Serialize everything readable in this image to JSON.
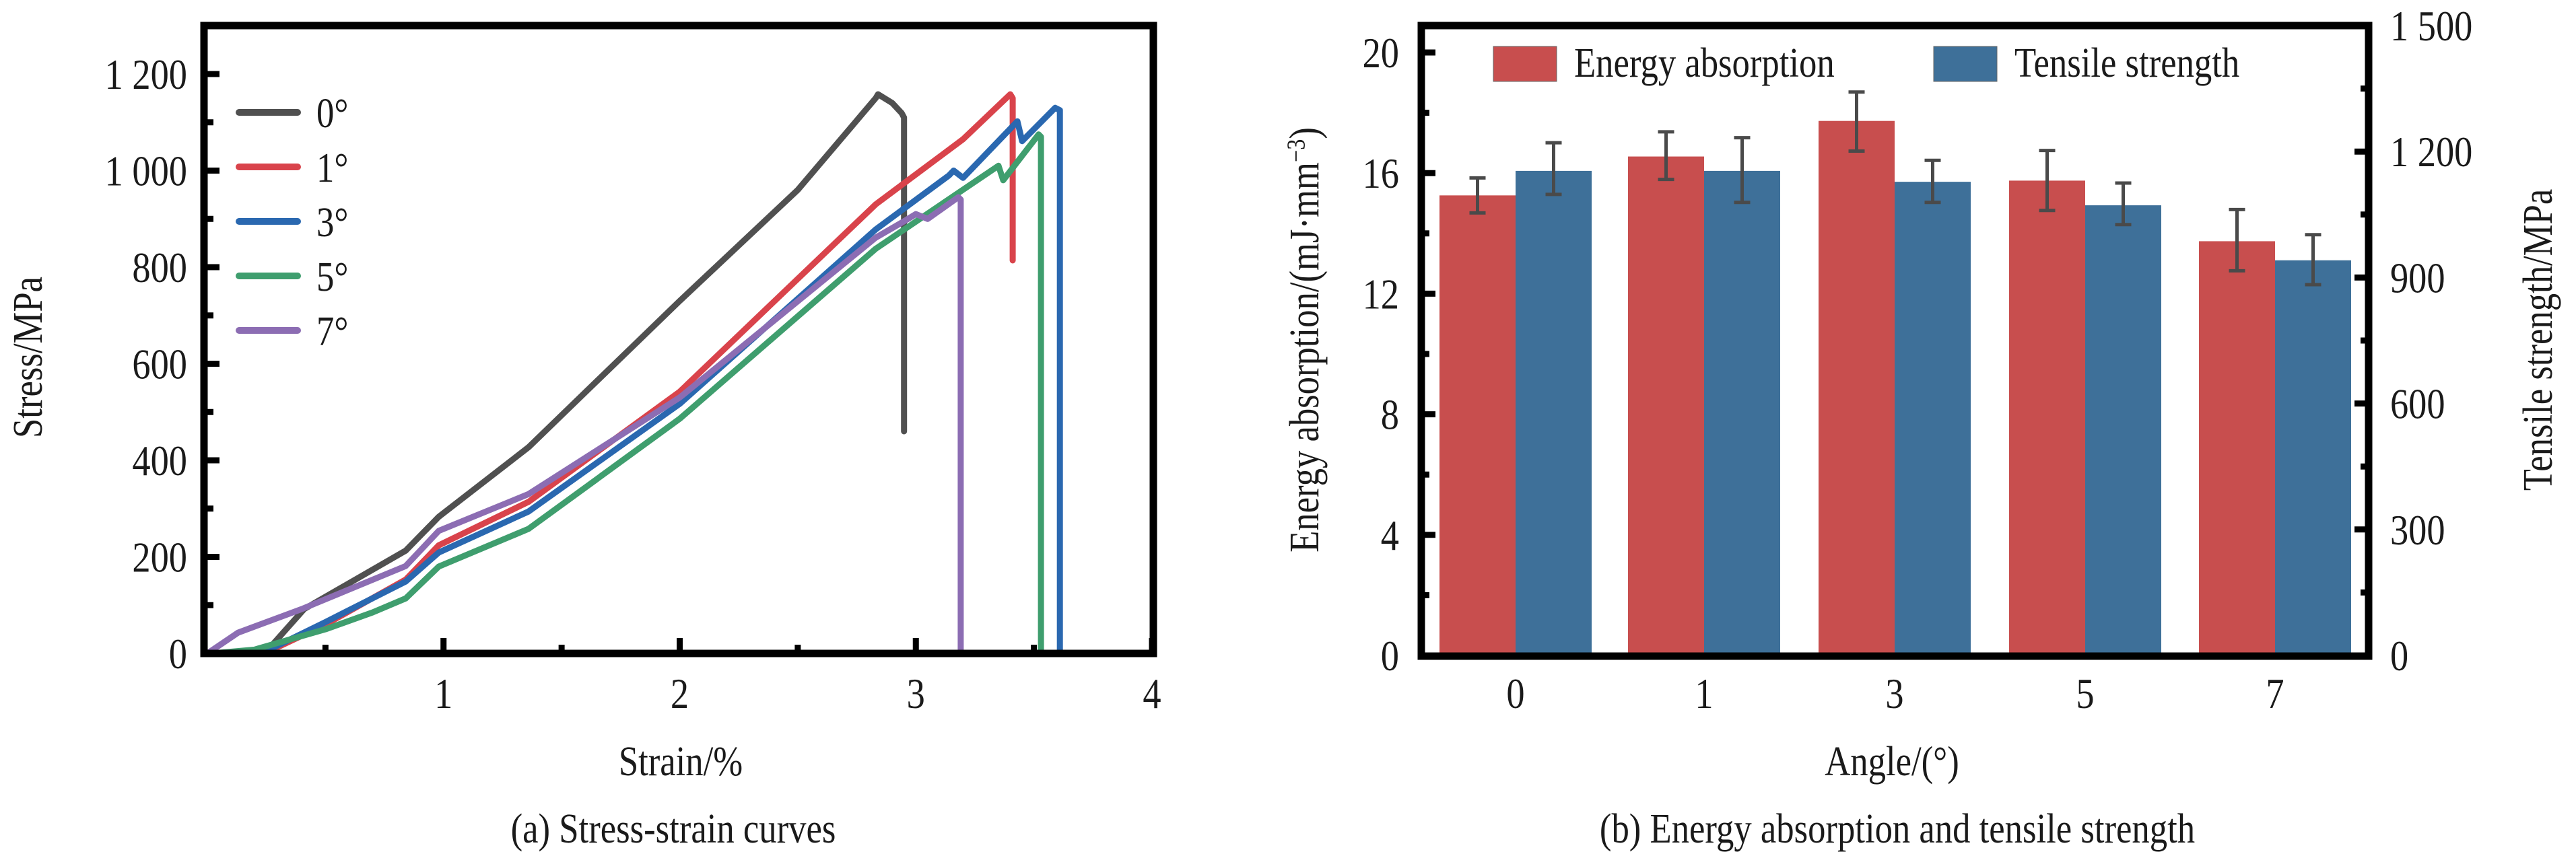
{
  "chart_data": [
    {
      "id": "a",
      "type": "line",
      "title": "",
      "caption": "(a) Stress-strain curves",
      "xlabel": "Strain/%",
      "ylabel": "Stress/MPa",
      "xlim": [
        0,
        4
      ],
      "ylim": [
        0,
        1305
      ],
      "xticks": [
        1,
        2,
        3,
        4
      ],
      "xtick_labels": [
        "1",
        "2",
        "3",
        "4"
      ],
      "x_minor_ticks": [
        0.5,
        1.5,
        2.5,
        3.5
      ],
      "yticks": [
        0,
        200,
        400,
        600,
        800,
        1000,
        1200
      ],
      "ytick_labels": [
        "0",
        "200",
        "400",
        "600",
        "800",
        "1 000",
        "1 200"
      ],
      "y_minor_ticks": [
        100,
        300,
        500,
        700,
        900,
        1100
      ],
      "grid": false,
      "legend_position": "top-left",
      "series": [
        {
          "name": "0°",
          "color": "#505050",
          "x": [
            0.02,
            0.25,
            0.41,
            0.84,
            0.98,
            1.36,
            2.0,
            2.5,
            2.83,
            2.84,
            2.9,
            2.94,
            2.95,
            2.95
          ],
          "y": [
            0,
            4,
            92,
            213,
            283,
            427,
            730,
            960,
            1150,
            1158,
            1140,
            1119,
            1110,
            460
          ]
        },
        {
          "name": "1°",
          "color": "#d9434b",
          "x": [
            0.02,
            0.25,
            0.5,
            0.84,
            0.98,
            1.36,
            2.0,
            2.83,
            3.2,
            3.4,
            3.41,
            3.41
          ],
          "y": [
            0,
            2,
            60,
            153,
            224,
            314,
            542,
            930,
            1065,
            1158,
            1150,
            814
          ]
        },
        {
          "name": "3°",
          "color": "#2a68b0",
          "x": [
            0.02,
            0.25,
            0.5,
            0.84,
            0.98,
            1.36,
            2.0,
            2.83,
            3.14,
            3.16,
            3.2,
            3.43,
            3.45,
            3.59,
            3.61,
            3.61
          ],
          "y": [
            0,
            5,
            65,
            149,
            209,
            294,
            517,
            878,
            990,
            1000,
            985,
            1102,
            1061,
            1130,
            1125,
            0
          ]
        },
        {
          "name": "5°",
          "color": "#3f9e6e",
          "x": [
            0.02,
            0.2,
            0.5,
            0.7,
            0.84,
            0.98,
            1.36,
            2.0,
            2.83,
            3.35,
            3.37,
            3.52,
            3.53,
            3.53
          ],
          "y": [
            0,
            8,
            50,
            85,
            114,
            180,
            258,
            486,
            838,
            1010,
            980,
            1075,
            1070,
            0
          ]
        },
        {
          "name": "7°",
          "color": "#8c6db3",
          "x": [
            0.0,
            0.13,
            0.4,
            0.84,
            0.98,
            1.36,
            2.0,
            2.83,
            2.95,
            3.0,
            3.05,
            3.18,
            3.19,
            3.19
          ],
          "y": [
            0,
            43,
            92,
            181,
            254,
            330,
            530,
            861,
            895,
            910,
            900,
            945,
            940,
            0
          ]
        }
      ]
    },
    {
      "id": "b",
      "type": "bar",
      "title": "",
      "caption": "(b) Energy absorption and tensile strength",
      "xlabel": "Angle/(°)",
      "ylabel": "Energy absorption/(mJ·mm",
      "ylabel_sup": "−3",
      "ylabel_close": ")",
      "y2label": "Tensile strength/MPa",
      "categories": [
        "0",
        "1",
        "3",
        "5",
        "7"
      ],
      "ylim": [
        0,
        20.9
      ],
      "y2lim": [
        0,
        1500
      ],
      "yticks": [
        0,
        4,
        8,
        12,
        16,
        20
      ],
      "ytick_labels": [
        "0",
        "4",
        "8",
        "12",
        "16",
        "20"
      ],
      "y_minor_ticks": [
        2,
        6,
        10,
        14,
        18
      ],
      "y2ticks": [
        0,
        300,
        600,
        900,
        1200,
        1500
      ],
      "y2tick_labels": [
        "0",
        "300",
        "600",
        "900",
        "1 200",
        "1 500"
      ],
      "y2_minor_ticks": [
        150,
        450,
        750,
        1050,
        1350
      ],
      "grid": false,
      "legend_position": "top",
      "series": [
        {
          "name": "Energy absorption",
          "axis": "left",
          "color": "#c84e4e",
          "values": [
            15.26,
            16.55,
            17.73,
            15.75,
            13.74
          ],
          "err_high": [
            15.84,
            17.37,
            18.69,
            16.75,
            14.79
          ],
          "err_low": [
            14.68,
            15.79,
            16.73,
            14.76,
            12.76
          ]
        },
        {
          "name": "Tensile strength",
          "axis": "right",
          "color": "#3e7099",
          "values": [
            1154,
            1154,
            1128,
            1072,
            941
          ],
          "err_high": [
            1221,
            1233,
            1179,
            1125,
            1002
          ],
          "err_low": [
            1098,
            1079,
            1079,
            1026,
            883
          ]
        }
      ]
    }
  ]
}
